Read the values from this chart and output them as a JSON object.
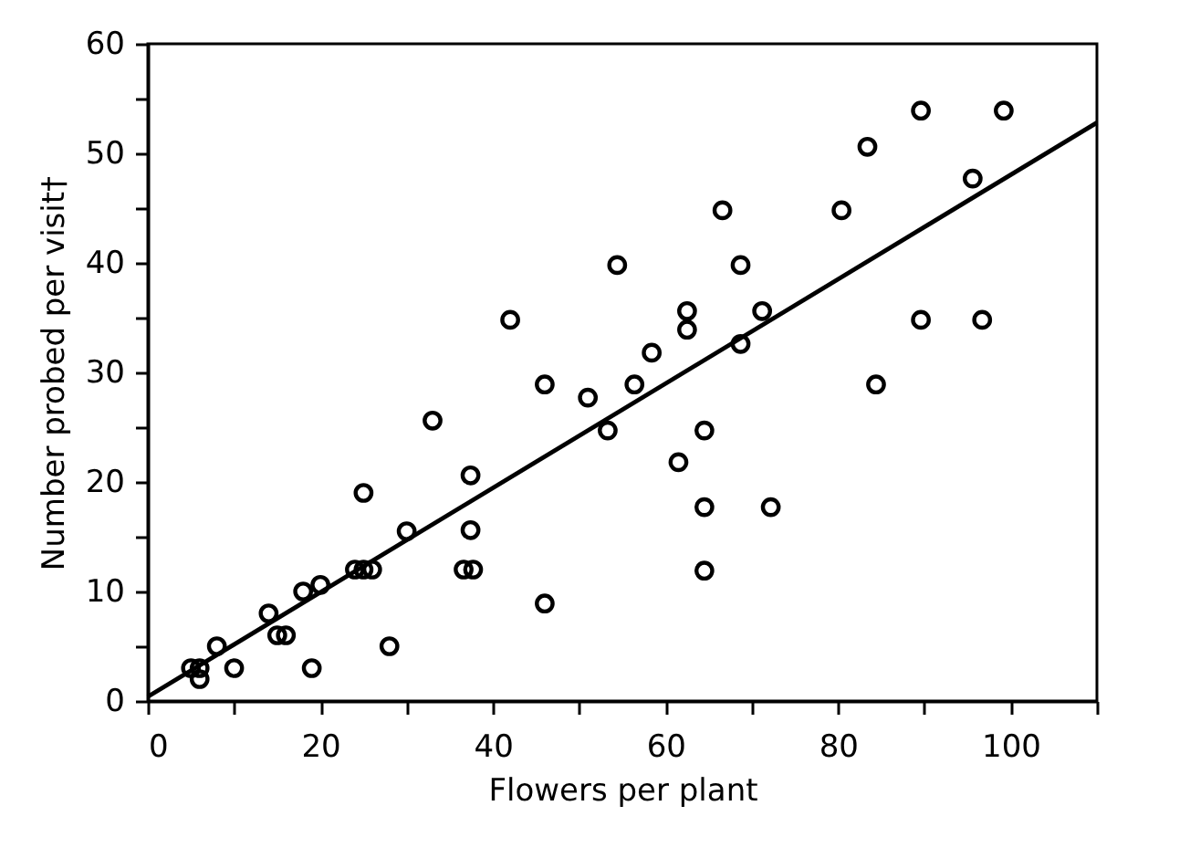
{
  "chart_data": {
    "type": "scatter",
    "xlabel": "Flowers per plant",
    "ylabel": "Number probed per visit†",
    "xlim": [
      0,
      110
    ],
    "ylim": [
      0,
      60
    ],
    "xticks": [
      0,
      {
        "value": 10,
        "label": null
      },
      20,
      {
        "value": 30,
        "label": null
      },
      40,
      {
        "value": 50,
        "label": null
      },
      60,
      {
        "value": 70,
        "label": null
      },
      80,
      {
        "value": 90,
        "label": null
      },
      100,
      {
        "value": 110,
        "label": null
      }
    ],
    "yticks": [
      0,
      {
        "value": 5,
        "label": null
      },
      10,
      {
        "value": 15,
        "label": null
      },
      20,
      {
        "value": 25,
        "label": null
      },
      30,
      {
        "value": 35,
        "label": null
      },
      40,
      {
        "value": 45,
        "label": null
      },
      50,
      {
        "value": 55,
        "label": null
      },
      60
    ],
    "grid": false,
    "series": [
      {
        "marker": "circle",
        "color": "#000000",
        "x": [
          5,
          6,
          6,
          8,
          10,
          14,
          15,
          16,
          18,
          19,
          20,
          24,
          25,
          26,
          25,
          28,
          30,
          33,
          36.6,
          37.7,
          37.4,
          37.4,
          42,
          46,
          46,
          51,
          53.3,
          54.4,
          56.4,
          58.4,
          61.5,
          62.5,
          62.5,
          64.5,
          64.5,
          64.5,
          66.6,
          68.7,
          68.7,
          71.2,
          72.2,
          80.4,
          83.4,
          84.4,
          89.6,
          89.6,
          95.6,
          96.7,
          99.2
        ],
        "values": [
          3,
          3,
          2,
          5,
          3,
          8,
          6,
          6,
          10,
          3,
          10.6,
          12,
          12,
          12,
          19,
          5,
          15.5,
          25.6,
          12,
          12,
          20.6,
          15.6,
          34.8,
          28.9,
          8.9,
          27.7,
          24.7,
          39.8,
          28.9,
          31.8,
          21.8,
          35.6,
          33.9,
          24.7,
          17.7,
          11.9,
          44.8,
          39.8,
          32.6,
          35.6,
          17.7,
          44.8,
          50.6,
          28.9,
          53.9,
          34.8,
          47.7,
          34.8,
          53.9
        ]
      },
      {
        "type": "line",
        "color": "#000000",
        "line_style": "solid",
        "x": [
          0,
          110
        ],
        "values": [
          0.4,
          52.8
        ]
      }
    ]
  }
}
